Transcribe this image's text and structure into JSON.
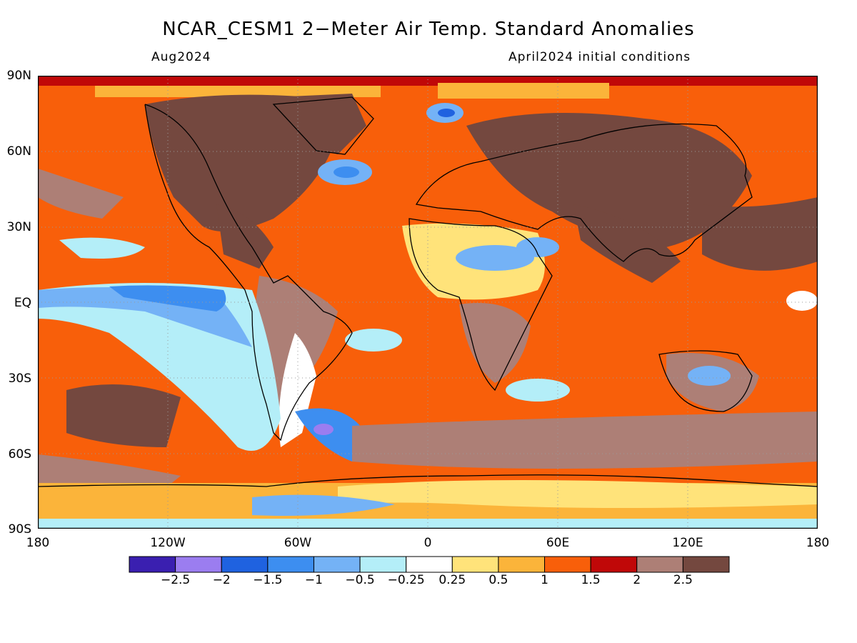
{
  "title": "NCAR_CESM1 2−Meter Air Temp. Standard Anomalies",
  "subtitle_left": "Aug2024",
  "subtitle_right": "April2024 initial conditions",
  "lat_labels": [
    "90N",
    "60N",
    "30N",
    "EQ",
    "30S",
    "60S",
    "90S"
  ],
  "lon_labels": [
    "180",
    "120W",
    "60W",
    "0",
    "60E",
    "120E",
    "180"
  ],
  "colorbar": {
    "colors": [
      "#3a1fb0",
      "#9b7df0",
      "#1f62e0",
      "#3d8ef0",
      "#74b2f6",
      "#b4eef8",
      "#ffffff",
      "#ffe37a",
      "#fbb43a",
      "#f85f0a",
      "#c00808",
      "#ad7f76",
      "#74483f"
    ],
    "labels": [
      "−2.5",
      "−2",
      "−1.5",
      "−1",
      "−0.5",
      "−0.25",
      "0.25",
      "0.5",
      "1",
      "1.5",
      "2",
      "2.5"
    ]
  }
}
